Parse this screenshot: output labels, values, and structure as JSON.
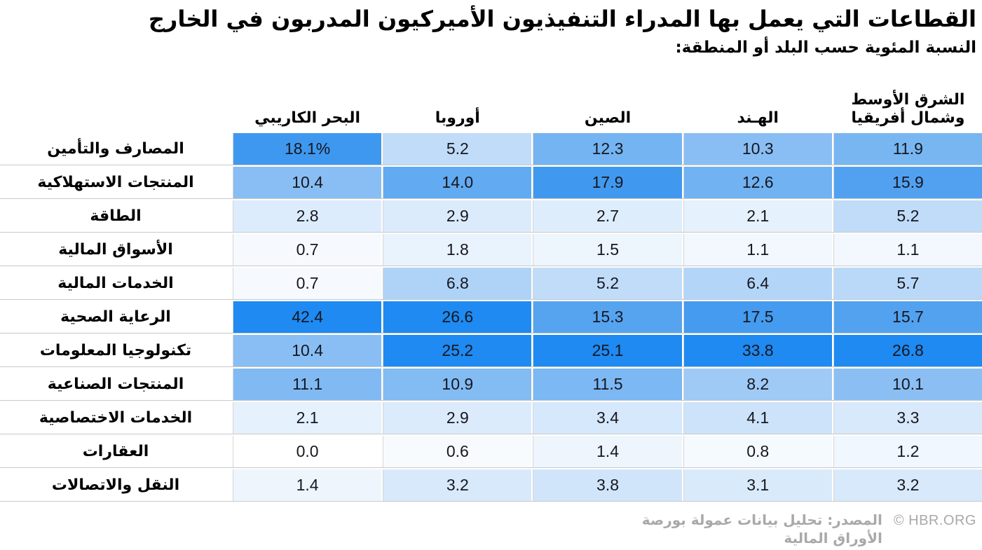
{
  "title": "القطاعات التي يعمل بها المدراء التنفيذيون الأميركيون المدربون في الخارج",
  "subtitle": "النسبة المئوية حسب البلد أو المنطقة:",
  "footer": {
    "source": "المصدر: تحليل بيانات عمولة بورصة الأوراق المالية",
    "credit": "© HBR.ORG"
  },
  "colors": {
    "accent_blue_max": "#1e8af2",
    "cell_min": "#ffffff",
    "row_separator": "#c9c9c9",
    "column_separator": "#d6d6d6",
    "number_text": "#17171f",
    "footer_text": "#a9a9a9",
    "title_text": "#000000"
  },
  "chart_data": {
    "type": "heatmap",
    "title": "القطاعات التي يعمل بها المدراء التنفيذيون الأميركيون المدربون في الخارج",
    "subtitle": "النسبة المئوية حسب البلد أو المنطقة:",
    "legend_position": "none",
    "grid": false,
    "columns": [
      "البحر الكاريبي",
      "أوروبا",
      "الصين",
      "الهـند",
      "الشرق الأوسط وشمال أفريقيا"
    ],
    "rows": [
      "المصارف والتأمين",
      "المنتجات الاستهلاكية",
      "الطاقة",
      "الأسواق المالية",
      "الخدمات المالية",
      "الرعاية الصحية",
      "تكنولوجيا المعلومات",
      "المنتجات الصناعية",
      "الخدمات الاختصاصية",
      "العقارات",
      "النقل والاتصالات"
    ],
    "values": [
      [
        18.1,
        5.2,
        12.3,
        10.3,
        11.9
      ],
      [
        10.4,
        14.0,
        17.9,
        12.6,
        15.9
      ],
      [
        2.8,
        2.9,
        2.7,
        2.1,
        5.2
      ],
      [
        0.7,
        1.8,
        1.5,
        1.1,
        1.1
      ],
      [
        0.7,
        6.8,
        5.2,
        6.4,
        5.7
      ],
      [
        42.4,
        26.6,
        15.3,
        17.5,
        15.7
      ],
      [
        10.4,
        25.2,
        25.1,
        33.8,
        26.8
      ],
      [
        11.1,
        10.9,
        11.5,
        8.2,
        10.1
      ],
      [
        2.1,
        2.9,
        3.4,
        4.1,
        3.3
      ],
      [
        0.0,
        0.6,
        1.4,
        0.8,
        1.2
      ],
      [
        1.4,
        3.2,
        3.8,
        3.1,
        3.2
      ]
    ],
    "display": [
      [
        "18.1%",
        "5.2",
        "12.3",
        "10.3",
        "11.9"
      ],
      [
        "10.4",
        "14.0",
        "17.9",
        "12.6",
        "15.9"
      ],
      [
        "2.8",
        "2.9",
        "2.7",
        "2.1",
        "5.2"
      ],
      [
        "0.7",
        "1.8",
        "1.5",
        "1.1",
        "1.1"
      ],
      [
        "0.7",
        "6.8",
        "5.2",
        "6.4",
        "5.7"
      ],
      [
        "42.4",
        "26.6",
        "15.3",
        "17.5",
        "15.7"
      ],
      [
        "10.4",
        "25.2",
        "25.1",
        "33.8",
        "26.8"
      ],
      [
        "11.1",
        "10.9",
        "11.5",
        "8.2",
        "10.1"
      ],
      [
        "2.1",
        "2.9",
        "3.4",
        "4.1",
        "3.3"
      ],
      [
        "0.0",
        "0.6",
        "1.4",
        "0.8",
        "1.2"
      ],
      [
        "1.4",
        "3.2",
        "3.8",
        "3.1",
        "3.2"
      ]
    ],
    "value_range": [
      0.0,
      42.4
    ],
    "color_scale": {
      "clamp_max": 25,
      "stops": [
        [
          0,
          "#ffffff"
        ],
        [
          5,
          "#c2ddf9"
        ],
        [
          10,
          "#8cc0f4"
        ],
        [
          15,
          "#58a5f0"
        ],
        [
          20,
          "#2f90ee"
        ],
        [
          25,
          "#1e8af2"
        ]
      ]
    }
  }
}
